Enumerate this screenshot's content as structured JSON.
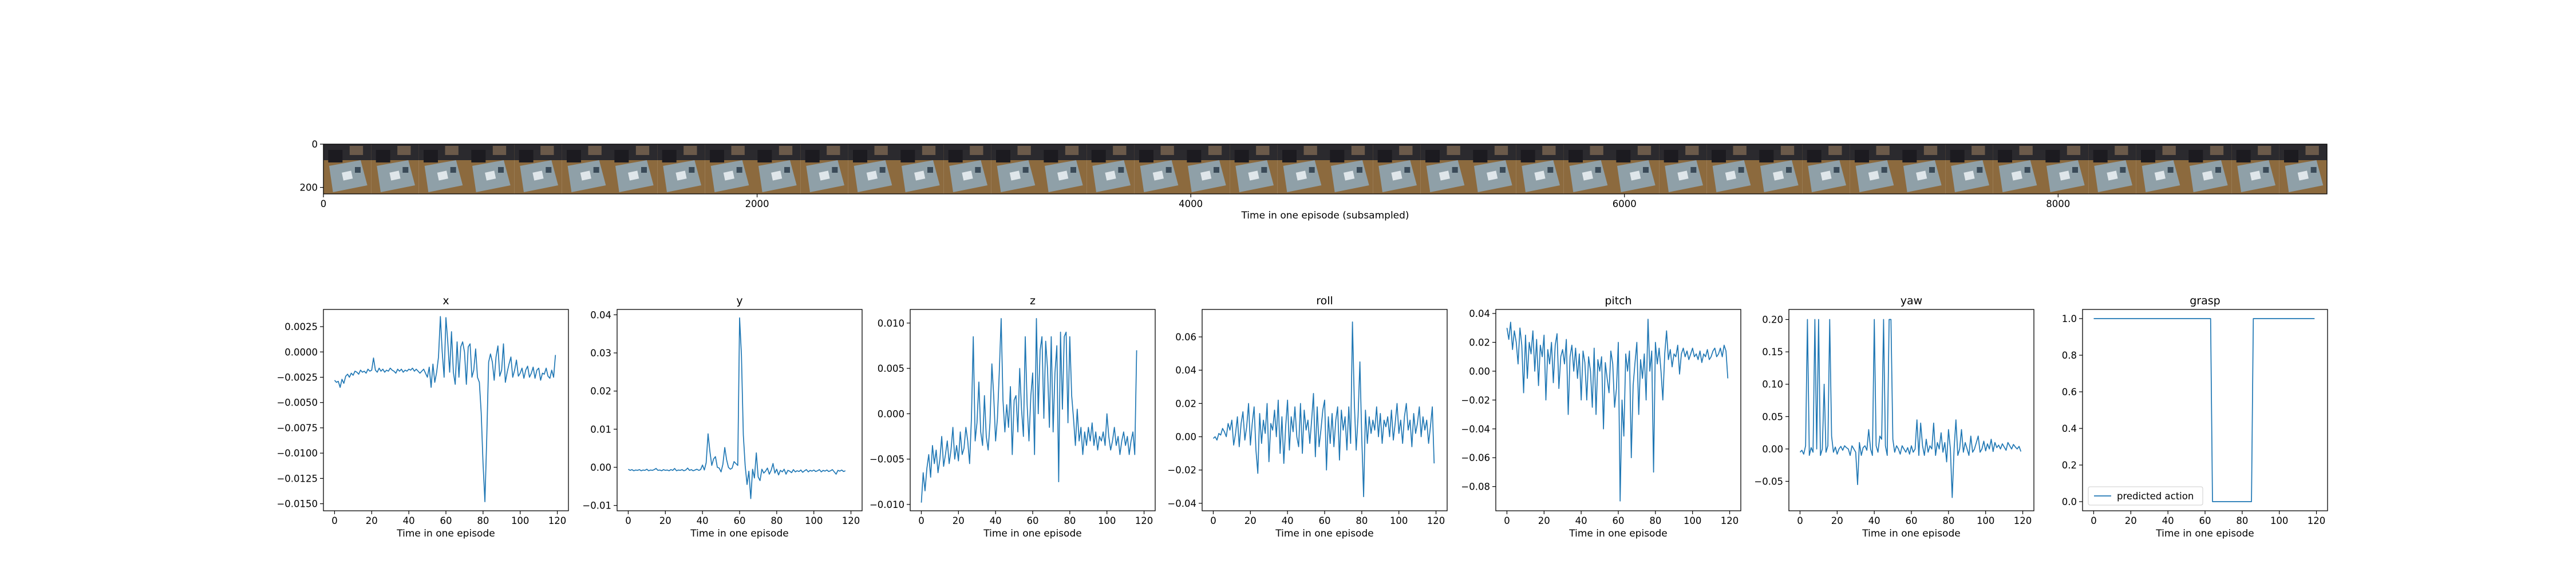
{
  "chart_data": [
    {
      "type": "image-strip",
      "xlabel": "Time in one episode (subsampled)",
      "xlim": [
        0,
        9240
      ],
      "ylim": [
        230,
        0
      ],
      "xticks": [
        0,
        2000,
        4000,
        6000,
        8000
      ],
      "yticks": [
        0,
        200
      ],
      "frame_count": 42
    },
    {
      "type": "line",
      "title": "x",
      "xlabel": "Time in one episode",
      "xlim": [
        -6,
        126
      ],
      "ylim": [
        -0.0157,
        0.0042
      ],
      "xticks": [
        0,
        20,
        40,
        60,
        80,
        100,
        120
      ],
      "yticks": [
        0.0025,
        0.0,
        -0.0025,
        -0.005,
        -0.0075,
        -0.01,
        -0.0125,
        -0.015
      ],
      "ytick_labels": [
        "0.0025",
        "0.0000",
        "−0.0025",
        "−0.0050",
        "−0.0075",
        "−0.0100",
        "−0.0125",
        "−0.0150"
      ],
      "series": [
        {
          "color": "#1f77b4",
          "values": [
            -0.0028,
            -0.003,
            -0.0029,
            -0.0035,
            -0.0027,
            -0.0031,
            -0.0024,
            -0.0022,
            -0.0025,
            -0.0021,
            -0.0023,
            -0.0019,
            -0.002,
            -0.0022,
            -0.0018,
            -0.002,
            -0.0019,
            -0.0021,
            -0.0017,
            -0.0019,
            -0.0018,
            -0.0006,
            -0.0018,
            -0.002,
            -0.0016,
            -0.0019,
            -0.0017,
            -0.002,
            -0.0018,
            -0.0019,
            -0.0016,
            -0.0018,
            -0.0019,
            -0.0021,
            -0.0017,
            -0.0019,
            -0.0017,
            -0.002,
            -0.0018,
            -0.0019,
            -0.0017,
            -0.0018,
            -0.0016,
            -0.0019,
            -0.0017,
            -0.0019,
            -0.0021,
            -0.0019,
            -0.0017,
            -0.0021,
            -0.0025,
            -0.0015,
            -0.0035,
            -0.0012,
            -0.003,
            -0.002,
            -0.0005,
            0.0035,
            0.0,
            -0.0025,
            0.0034,
            0.001,
            -0.002,
            0.002,
            -0.002,
            -0.0032,
            0.001,
            -0.0025,
            0.0005,
            0.001,
            0.0,
            -0.0032,
            0.0005,
            0.0008,
            -0.0025,
            -0.0018,
            0.0003,
            -0.0025,
            -0.003,
            -0.006,
            -0.011,
            -0.0148,
            -0.0085,
            -0.001,
            -0.0002,
            -0.001,
            -0.0028,
            -0.0005,
            0.0006,
            -0.0024,
            -0.0018,
            0.0008,
            -0.003,
            -0.002,
            -0.0012,
            -0.0005,
            -0.0025,
            -0.0018,
            -0.0008,
            -0.0024,
            -0.0021,
            -0.0016,
            -0.0026,
            -0.0018,
            -0.0014,
            -0.0025,
            -0.0021,
            -0.0015,
            -0.0026,
            -0.0018,
            -0.0016,
            -0.0028,
            -0.0021,
            -0.0022,
            -0.0016,
            -0.0024,
            -0.0026,
            -0.0018,
            -0.0025,
            -0.0003
          ]
        }
      ]
    },
    {
      "type": "line",
      "title": "y",
      "xlabel": "Time in one episode",
      "xlim": [
        -6,
        126
      ],
      "ylim": [
        -0.0114,
        0.0414
      ],
      "xticks": [
        0,
        20,
        40,
        60,
        80,
        100,
        120
      ],
      "yticks": [
        0.04,
        0.03,
        0.02,
        0.01,
        0.0,
        -0.01
      ],
      "ytick_labels": [
        "0.04",
        "0.03",
        "0.02",
        "0.01",
        "0.00",
        "−0.01"
      ],
      "series": [
        {
          "color": "#1f77b4",
          "values": [
            -0.0005,
            -0.0008,
            -0.0006,
            -0.0009,
            -0.0007,
            -0.0008,
            -0.0006,
            -0.0009,
            -0.0007,
            -0.0008,
            -0.0005,
            -0.0009,
            -0.0007,
            -0.0008,
            -0.0006,
            -0.0003,
            -0.0008,
            -0.0007,
            -0.0009,
            -0.0006,
            -0.0008,
            -0.0007,
            -0.0009,
            -0.0006,
            -0.0008,
            -0.0003,
            -0.0009,
            -0.0007,
            -0.0008,
            -0.0006,
            -0.0009,
            -0.0007,
            -0.0002,
            -0.0008,
            -0.0006,
            -0.0009,
            -0.0007,
            -0.0005,
            -0.0008,
            -0.0006,
            0.0006,
            -0.0007,
            0.0012,
            0.0088,
            0.0042,
            0.0005,
            0.0022,
            0.0028,
            0.0,
            -0.0002,
            -0.0012,
            0.0008,
            0.0052,
            0.002,
            0.0,
            -0.0005,
            -0.0002,
            0.0015,
            0.001,
            0.0005,
            0.0392,
            0.0295,
            0.0085,
            0.0005,
            -0.0045,
            -0.001,
            -0.0082,
            -0.0005,
            -0.0028,
            0.0038,
            -0.0025,
            -0.0035,
            -0.0005,
            -0.0015,
            -0.001,
            -0.0002,
            -0.0018,
            -0.0008,
            0.001,
            -0.0015,
            -0.0005,
            -0.002,
            -0.0008,
            -0.0012,
            -0.0005,
            -0.0018,
            -0.0008,
            -0.001,
            -0.0014,
            -0.0006,
            -0.0012,
            -0.0009,
            -0.0011,
            -0.0007,
            -0.0013,
            -0.0009,
            -0.0006,
            -0.0012,
            -0.0008,
            -0.001,
            -0.0007,
            -0.0011,
            -0.0009,
            -0.0006,
            -0.0012,
            -0.0008,
            -0.001,
            -0.0007,
            -0.0011,
            -0.0009,
            -0.0006,
            -0.0012,
            -0.0018,
            -0.0008,
            -0.001,
            -0.0007,
            -0.0011,
            -0.0009
          ]
        }
      ]
    },
    {
      "type": "line",
      "title": "z",
      "xlabel": "Time in one episode",
      "xlim": [
        -6,
        126
      ],
      "ylim": [
        -0.0107,
        0.0115
      ],
      "xticks": [
        0,
        20,
        40,
        60,
        80,
        100,
        120
      ],
      "yticks": [
        0.01,
        0.005,
        0.0,
        -0.005,
        -0.01
      ],
      "ytick_labels": [
        "0.010",
        "0.005",
        "0.000",
        "−0.005",
        "−0.010"
      ],
      "series": [
        {
          "color": "#1f77b4",
          "values": [
            -0.0098,
            -0.0065,
            -0.0085,
            -0.006,
            -0.0045,
            -0.007,
            -0.0035,
            -0.0055,
            -0.004,
            -0.0065,
            -0.005,
            -0.0025,
            -0.0058,
            -0.0045,
            -0.003,
            -0.0055,
            -0.004,
            -0.0015,
            -0.005,
            -0.0035,
            -0.0052,
            -0.002,
            -0.0045,
            -0.0038,
            -0.0015,
            -0.003,
            -0.0055,
            -0.0005,
            0.0085,
            -0.003,
            -0.001,
            0.0035,
            -0.002,
            -0.0035,
            0.002,
            -0.0025,
            -0.004,
            -0.001,
            0.0055,
            0.002,
            -0.003,
            -0.0005,
            0.0045,
            0.0105,
            0.0015,
            -0.002,
            0.001,
            -0.0015,
            0.003,
            -0.0045,
            0.0015,
            0.002,
            -0.002,
            0.005,
            0.0005,
            -0.0025,
            0.0085,
            0.001,
            -0.003,
            0.002,
            0.0045,
            -0.0045,
            0.0105,
            0.0,
            0.007,
            0.0085,
            -0.0005,
            0.008,
            0.005,
            -0.0015,
            0.0085,
            -0.002,
            0.0045,
            0.0075,
            -0.0075,
            0.009,
            0.0005,
            0.0085,
            0.009,
            -0.001,
            0.0085,
            0.002,
            -0.0005,
            -0.0035,
            0.0005,
            -0.003,
            -0.0015,
            -0.0045,
            -0.002,
            -0.0035,
            -0.0015,
            -0.003,
            -0.001,
            -0.0035,
            -0.002,
            -0.004,
            -0.0025,
            -0.003,
            -0.002,
            -0.0035,
            0.0,
            -0.0025,
            -0.004,
            -0.003,
            -0.0015,
            -0.0035,
            -0.0025,
            -0.0045,
            -0.003,
            -0.002,
            -0.0035,
            -0.0025,
            -0.0045,
            -0.003,
            -0.002,
            -0.0045,
            0.007
          ]
        }
      ]
    },
    {
      "type": "line",
      "title": "roll",
      "xlabel": "Time in one episode",
      "xlim": [
        -6,
        126
      ],
      "ylim": [
        -0.0445,
        0.0765
      ],
      "xticks": [
        0,
        20,
        40,
        60,
        80,
        100,
        120
      ],
      "yticks": [
        0.06,
        0.04,
        0.02,
        0.0,
        -0.02,
        -0.04
      ],
      "ytick_labels": [
        "0.06",
        "0.04",
        "0.02",
        "0.00",
        "−0.02",
        "−0.04"
      ],
      "series": [
        {
          "color": "#1f77b4",
          "values": [
            -0.001,
            0.0,
            -0.002,
            0.002,
            0.001,
            0.005,
            0.003,
            0.0,
            0.008,
            0.004,
            0.01,
            -0.005,
            0.002,
            0.012,
            -0.006,
            0.008,
            0.015,
            -0.002,
            0.006,
            0.02,
            -0.005,
            0.008,
            0.018,
            -0.008,
            -0.022,
            0.014,
            -0.004,
            0.01,
            0.002,
            0.02,
            -0.015,
            0.008,
            0.004,
            0.016,
            0.0,
            0.022,
            -0.01,
            0.012,
            -0.016,
            0.006,
            0.022,
            -0.008,
            0.012,
            0.003,
            0.018,
            0.0,
            -0.006,
            0.02,
            -0.01,
            0.016,
            0.004,
            0.01,
            -0.004,
            0.01,
            0.026,
            -0.012,
            0.018,
            -0.006,
            0.004,
            0.016,
            0.022,
            -0.02,
            0.012,
            -0.004,
            0.014,
            -0.006,
            0.01,
            0.018,
            -0.014,
            0.016,
            0.004,
            0.012,
            -0.008,
            0.018,
            -0.004,
            0.069,
            0.02,
            -0.008,
            0.012,
            0.045,
            0.0,
            -0.036,
            0.016,
            -0.004,
            0.012,
            0.002,
            0.01,
            0.004,
            0.018,
            0.0,
            0.014,
            -0.004,
            0.01,
            0.006,
            0.012,
            0.0,
            0.016,
            -0.002,
            0.008,
            0.02,
            0.002,
            0.01,
            -0.004,
            0.012,
            0.02,
            0.004,
            0.01,
            -0.006,
            0.014,
            0.002,
            0.008,
            0.018,
            0.0,
            0.012,
            0.004,
            0.01,
            -0.004,
            0.006,
            0.018,
            -0.016
          ]
        }
      ]
    },
    {
      "type": "line",
      "title": "pitch",
      "xlabel": "Time in one episode",
      "xlim": [
        -6,
        126
      ],
      "ylim": [
        -0.0968,
        0.0428
      ],
      "xticks": [
        0,
        20,
        40,
        60,
        80,
        100,
        120
      ],
      "yticks": [
        0.04,
        0.02,
        0.0,
        -0.02,
        -0.04,
        -0.06,
        -0.08
      ],
      "ytick_labels": [
        "0.04",
        "0.02",
        "0.00",
        "−0.02",
        "−0.04",
        "−0.06",
        "−0.08"
      ],
      "series": [
        {
          "color": "#1f77b4",
          "values": [
            0.03,
            0.022,
            0.034,
            0.015,
            0.028,
            0.02,
            0.005,
            0.03,
            0.018,
            -0.015,
            0.025,
            -0.005,
            0.02,
            0.012,
            0.028,
            0.0,
            0.022,
            -0.01,
            0.018,
            0.01,
            0.025,
            -0.02,
            0.015,
            0.005,
            0.02,
            -0.008,
            0.018,
            0.026,
            -0.012,
            0.01,
            0.015,
            0.005,
            0.022,
            -0.03,
            0.01,
            0.018,
            0.0,
            0.016,
            -0.005,
            0.012,
            -0.02,
            0.014,
            0.006,
            -0.02,
            0.01,
            0.0,
            -0.025,
            0.016,
            -0.03,
            0.008,
            0.0,
            0.01,
            -0.04,
            0.006,
            -0.005,
            -0.015,
            0.014,
            0.005,
            -0.025,
            -0.012,
            0.02,
            -0.09,
            -0.02,
            -0.045,
            0.012,
            0.0,
            0.014,
            -0.06,
            -0.01,
            0.006,
            0.02,
            -0.03,
            0.008,
            -0.005,
            0.012,
            -0.02,
            0.036,
            0.0,
            0.014,
            -0.07,
            0.02,
            0.005,
            0.016,
            0.0,
            -0.02,
            0.012,
            0.028,
            0.008,
            0.015,
            0.003,
            0.012,
            0.01,
            0.018,
            -0.002,
            0.012,
            0.016,
            0.01,
            0.014,
            0.008,
            0.012,
            0.016,
            0.01,
            0.012,
            0.008,
            0.014,
            0.006,
            0.012,
            0.01,
            0.015,
            0.008,
            0.01,
            0.014,
            0.016,
            0.01,
            0.012,
            0.016,
            0.01,
            0.018,
            0.014,
            -0.005
          ]
        }
      ]
    },
    {
      "type": "line",
      "title": "yaw",
      "xlabel": "Time in one episode",
      "xlim": [
        -6,
        126
      ],
      "ylim": [
        -0.0955,
        0.2155
      ],
      "xticks": [
        0,
        20,
        40,
        60,
        80,
        100,
        120
      ],
      "yticks": [
        0.2,
        0.15,
        0.1,
        0.05,
        0.0,
        -0.05
      ],
      "ytick_labels": [
        "0.20",
        "0.15",
        "0.10",
        "0.05",
        "0.00",
        "−0.05"
      ],
      "series": [
        {
          "color": "#1f77b4",
          "values": [
            -0.005,
            -0.002,
            -0.008,
            0.005,
            0.2,
            -0.01,
            0.002,
            -0.005,
            0.2,
            0.0,
            0.2,
            -0.01,
            0.0,
            0.1,
            -0.005,
            0.005,
            0.2,
            0.02,
            -0.005,
            0.003,
            -0.008,
            0.0,
            0.004,
            -0.002,
            0.005,
            0.002,
            0.0,
            -0.01,
            0.005,
            0.0,
            -0.005,
            -0.055,
            0.01,
            -0.01,
            0.002,
            0.005,
            -0.002,
            0.03,
            0.0,
            -0.01,
            0.2,
            0.005,
            -0.005,
            0.02,
            0.015,
            0.2,
            0.005,
            -0.01,
            0.2,
            0.2,
            0.015,
            -0.005,
            0.005,
            0.0,
            -0.008,
            0.005,
            0.0,
            -0.005,
            0.002,
            -0.008,
            0.005,
            -0.005,
            0.0,
            0.045,
            -0.01,
            0.04,
            0.005,
            -0.01,
            0.015,
            -0.005,
            0.005,
            0.0,
            0.04,
            -0.01,
            0.01,
            0.0,
            0.025,
            -0.005,
            0.01,
            -0.02,
            0.03,
            0.0,
            -0.075,
            0.0,
            0.045,
            -0.01,
            0.0,
            0.03,
            -0.005,
            0.01,
            0.0,
            -0.01,
            0.02,
            -0.005,
            0.0,
            0.01,
            0.02,
            -0.005,
            0.0,
            0.012,
            -0.003,
            0.008,
            0.0,
            0.015,
            -0.004,
            0.01,
            0.002,
            0.006,
            0.0,
            0.008,
            0.003,
            -0.002,
            0.01,
            0.005,
            0.0,
            0.007,
            0.003,
            0.0,
            0.004,
            -0.004
          ]
        }
      ]
    },
    {
      "type": "line",
      "title": "grasp",
      "xlabel": "Time in one episode",
      "xlim": [
        -6,
        126
      ],
      "ylim": [
        -0.05,
        1.05
      ],
      "xticks": [
        0,
        20,
        40,
        60,
        80,
        100,
        120
      ],
      "yticks": [
        1.0,
        0.8,
        0.6,
        0.4,
        0.2,
        0.0
      ],
      "ytick_labels": [
        "1.0",
        "0.8",
        "0.6",
        "0.4",
        "0.2",
        "0.0"
      ],
      "legend": "lower-left",
      "series": [
        {
          "name": "predicted action",
          "color": "#1f77b4",
          "points": [
            [
              0,
              1
            ],
            [
              63,
              1
            ],
            [
              64,
              0
            ],
            [
              85,
              0
            ],
            [
              86,
              1
            ],
            [
              119,
              1
            ]
          ]
        }
      ]
    }
  ]
}
